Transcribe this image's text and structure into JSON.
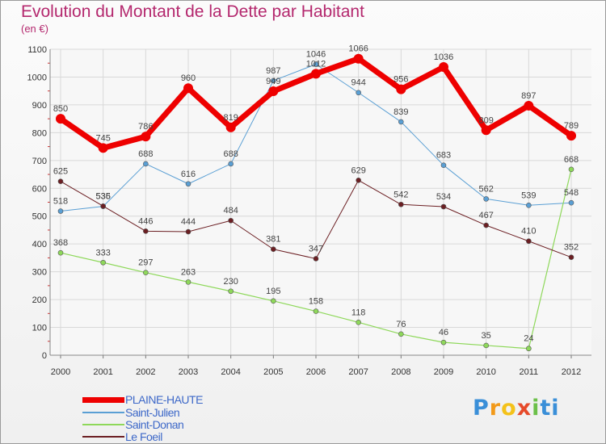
{
  "title": "Evolution du Montant de la Dette par Habitant",
  "unit": "(en €)",
  "brand": [
    "P",
    "r",
    "o",
    "x",
    "i",
    "ti"
  ],
  "chart_data": {
    "type": "line",
    "categories": [
      "2000",
      "2001",
      "2002",
      "2003",
      "2004",
      "2005",
      "2006",
      "2007",
      "2008",
      "2009",
      "2010",
      "2011",
      "2012"
    ],
    "ylim": [
      0,
      1100
    ],
    "yticks": [
      0,
      100,
      200,
      300,
      400,
      500,
      600,
      700,
      800,
      900,
      1000,
      1100
    ],
    "grid": true,
    "legend_position": "bottom-left",
    "series": [
      {
        "name": "PLAINE-HAUTE",
        "color": "#ee0000",
        "width": 7,
        "marker": 6,
        "values": [
          850,
          745,
          786,
          960,
          819,
          949,
          1012,
          1066,
          956,
          1036,
          809,
          897,
          789
        ]
      },
      {
        "name": "Saint-Julien",
        "color": "#5a9fd4",
        "width": 1,
        "marker": 3,
        "values": [
          518,
          535,
          688,
          616,
          688,
          987,
          1046,
          944,
          839,
          683,
          562,
          539,
          548
        ]
      },
      {
        "name": "Saint-Donan",
        "color": "#8ed85a",
        "width": 1.2,
        "marker": 3,
        "values": [
          368,
          333,
          297,
          263,
          230,
          195,
          158,
          118,
          76,
          46,
          35,
          24,
          668
        ]
      },
      {
        "name": "Le Foeil",
        "color": "#6b1e22",
        "width": 1,
        "marker": 3,
        "values": [
          625,
          536,
          446,
          444,
          484,
          381,
          347,
          629,
          542,
          534,
          467,
          410,
          352
        ]
      }
    ]
  }
}
